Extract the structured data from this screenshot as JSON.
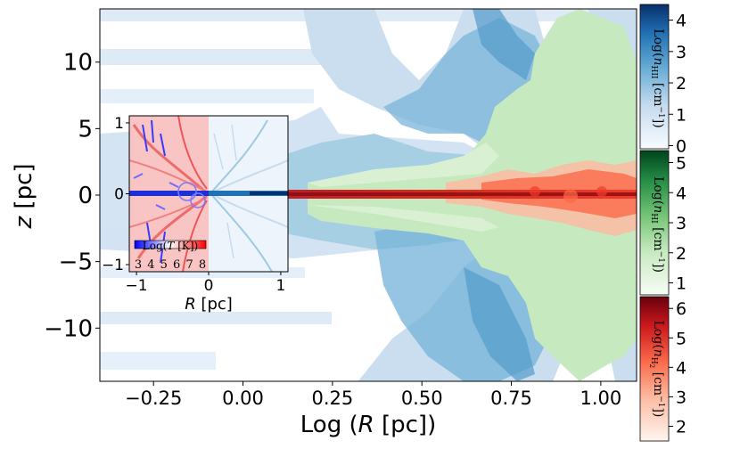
{
  "chart_data": {
    "type": "heatmap",
    "main": {
      "xlabel": "Log (R [pc])",
      "ylabel": "z [pc]",
      "xlim": [
        -0.4,
        1.1
      ],
      "ylim": [
        -14,
        14
      ],
      "xticks": [
        "−0.25",
        "0.00",
        "0.25",
        "0.50",
        "0.75",
        "1.00"
      ],
      "xtick_values": [
        -0.25,
        0.0,
        0.25,
        0.5,
        0.75,
        1.0
      ],
      "yticks": [
        "10",
        "5",
        "0",
        "−5",
        "−10"
      ],
      "ytick_values": [
        10,
        5,
        0,
        -5,
        -10
      ]
    },
    "inset": {
      "xlabel": "R [pc]",
      "xlim": [
        -1.1,
        1.1
      ],
      "ylim": [
        -1.1,
        1.1
      ],
      "xticks": [
        "−1",
        "0",
        "1"
      ],
      "yticks": [
        "1",
        "0",
        "−1"
      ],
      "temp_bar_label": "Log(T [K])",
      "temp_bar_ticks": [
        "3",
        "4",
        "5",
        "6",
        "7",
        "8"
      ]
    },
    "colorbars": [
      {
        "label": "Log(n_HII [cm⁻¹])",
        "ticks": [
          "4",
          "3",
          "2",
          "1",
          "0"
        ],
        "range": [
          -0.1,
          4.5
        ],
        "color": "#08306b"
      },
      {
        "label": "Log(n_HI [cm⁻¹])",
        "ticks": [
          "5",
          "4",
          "3",
          "2",
          "1"
        ],
        "range": [
          0.6,
          5.4
        ],
        "color": "#00441b"
      },
      {
        "label": "Log(n_H2 [cm⁻¹])",
        "ticks": [
          "6",
          "5",
          "4",
          "3",
          "2"
        ],
        "range": [
          1.5,
          6.4
        ],
        "color": "#67000d"
      }
    ]
  },
  "labels": {
    "main_xlabel_pre": "Log (",
    "main_xlabel_var": "R",
    "main_xlabel_post": " [pc])",
    "main_ylabel_var": "z",
    "main_ylabel_post": " [pc]",
    "inset_xlabel_var": "R",
    "inset_xlabel_post": " [pc]",
    "temp_label_pre": "Log(",
    "temp_label_var": "T",
    "temp_label_post": " [K])",
    "cb1_pre": "Log(",
    "cb1_var": "n",
    "cb1_sub": "HII",
    "cb1_post": " [cm",
    "cb1_sup": "−1",
    "cb1_end": "])",
    "cb2_pre": "Log(",
    "cb2_var": "n",
    "cb2_sub": "HI",
    "cb2_post": " [cm",
    "cb2_sup": "−1",
    "cb2_end": "])",
    "cb3_pre": "Log(",
    "cb3_var": "n",
    "cb3_sub": "H",
    "cb3_subsub": "2",
    "cb3_post": " [cm",
    "cb3_sup": "−1",
    "cb3_end": "])"
  }
}
